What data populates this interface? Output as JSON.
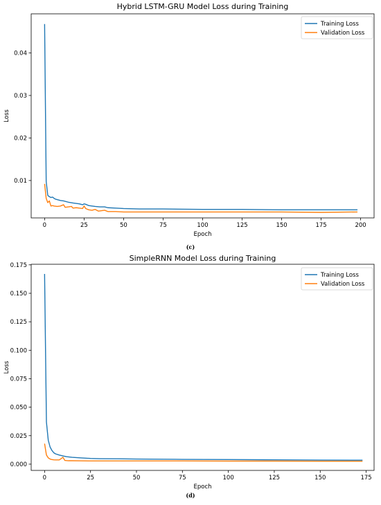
{
  "chart_data": [
    {
      "type": "line",
      "title": "Hybrid LSTM-GRU Model Loss during Training",
      "xlabel": "Epoch",
      "ylabel": "Loss",
      "xlim": [
        -8.5,
        208.5
      ],
      "ylim": [
        0.0012,
        0.0492
      ],
      "xticks": [
        0,
        25,
        50,
        75,
        100,
        125,
        150,
        175,
        200
      ],
      "yticks": [
        0.01,
        0.02,
        0.03,
        0.04
      ],
      "grid": false,
      "legend": "top-right",
      "series": [
        {
          "name": "Training Loss",
          "color": "#1f77b4",
          "points": [
            [
              0,
              0.0468
            ],
            [
              1,
              0.0098
            ],
            [
              2,
              0.0065
            ],
            [
              3,
              0.0062
            ],
            [
              4,
              0.006
            ],
            [
              5,
              0.0061
            ],
            [
              6,
              0.0058
            ],
            [
              7,
              0.0056
            ],
            [
              8,
              0.0055
            ],
            [
              10,
              0.0053
            ],
            [
              12,
              0.0052
            ],
            [
              15,
              0.0049
            ],
            [
              18,
              0.0047
            ],
            [
              20,
              0.0046
            ],
            [
              22,
              0.0045
            ],
            [
              24,
              0.0043
            ],
            [
              25,
              0.0045
            ],
            [
              26,
              0.0044
            ],
            [
              28,
              0.0041
            ],
            [
              30,
              0.004
            ],
            [
              32,
              0.0039
            ],
            [
              35,
              0.0038
            ],
            [
              38,
              0.0038
            ],
            [
              40,
              0.0036
            ],
            [
              45,
              0.0035
            ],
            [
              50,
              0.0034
            ],
            [
              60,
              0.0033
            ],
            [
              75,
              0.0033
            ],
            [
              100,
              0.0032
            ],
            [
              125,
              0.0032
            ],
            [
              150,
              0.0031
            ],
            [
              175,
              0.0031
            ],
            [
              198,
              0.0031
            ]
          ]
        },
        {
          "name": "Validation Loss",
          "color": "#ff7f0e",
          "points": [
            [
              0,
              0.0092
            ],
            [
              1,
              0.0058
            ],
            [
              2,
              0.0048
            ],
            [
              3,
              0.0052
            ],
            [
              4,
              0.004
            ],
            [
              5,
              0.0041
            ],
            [
              6,
              0.004
            ],
            [
              8,
              0.0039
            ],
            [
              10,
              0.004
            ],
            [
              12,
              0.0043
            ],
            [
              13,
              0.0037
            ],
            [
              15,
              0.0038
            ],
            [
              17,
              0.0039
            ],
            [
              18,
              0.0035
            ],
            [
              20,
              0.0036
            ],
            [
              22,
              0.0035
            ],
            [
              24,
              0.0034
            ],
            [
              25,
              0.004
            ],
            [
              26,
              0.0034
            ],
            [
              28,
              0.0031
            ],
            [
              30,
              0.003
            ],
            [
              32,
              0.0032
            ],
            [
              34,
              0.0028
            ],
            [
              36,
              0.0029
            ],
            [
              38,
              0.003
            ],
            [
              40,
              0.0027
            ],
            [
              45,
              0.0027
            ],
            [
              50,
              0.0026
            ],
            [
              75,
              0.0026
            ],
            [
              100,
              0.0026
            ],
            [
              125,
              0.0026
            ],
            [
              150,
              0.0026
            ],
            [
              175,
              0.0025
            ],
            [
              198,
              0.0026
            ]
          ]
        }
      ]
    },
    {
      "type": "line",
      "title": "SimpleRNN Model Loss during Training",
      "xlabel": "Epoch",
      "ylabel": "Loss",
      "xlim": [
        -7.3,
        179.3
      ],
      "ylim": [
        -0.0055,
        0.1755
      ],
      "xticks": [
        0,
        25,
        50,
        75,
        100,
        125,
        150,
        175
      ],
      "yticks": [
        0.0,
        0.025,
        0.05,
        0.075,
        0.1,
        0.125,
        0.15,
        0.175
      ],
      "grid": false,
      "legend": "top-right",
      "series": [
        {
          "name": "Training Loss",
          "color": "#1f77b4",
          "points": [
            [
              0,
              0.167
            ],
            [
              1,
              0.037
            ],
            [
              2,
              0.021
            ],
            [
              3,
              0.015
            ],
            [
              4,
              0.012
            ],
            [
              5,
              0.01
            ],
            [
              6,
              0.009
            ],
            [
              8,
              0.008
            ],
            [
              10,
              0.0072
            ],
            [
              12,
              0.0065
            ],
            [
              15,
              0.006
            ],
            [
              20,
              0.0055
            ],
            [
              25,
              0.005
            ],
            [
              30,
              0.0048
            ],
            [
              40,
              0.0047
            ],
            [
              50,
              0.0045
            ],
            [
              75,
              0.0042
            ],
            [
              100,
              0.004
            ],
            [
              125,
              0.0038
            ],
            [
              150,
              0.0036
            ],
            [
              173,
              0.0035
            ]
          ]
        },
        {
          "name": "Validation Loss",
          "color": "#ff7f0e",
          "points": [
            [
              0,
              0.018
            ],
            [
              1,
              0.008
            ],
            [
              2,
              0.0055
            ],
            [
              3,
              0.0045
            ],
            [
              4,
              0.004
            ],
            [
              5,
              0.0038
            ],
            [
              6,
              0.0037
            ],
            [
              8,
              0.0037
            ],
            [
              10,
              0.006
            ],
            [
              11,
              0.0033
            ],
            [
              13,
              0.003
            ],
            [
              15,
              0.003
            ],
            [
              20,
              0.0029
            ],
            [
              25,
              0.0028
            ],
            [
              50,
              0.0028
            ],
            [
              75,
              0.0028
            ],
            [
              100,
              0.0027
            ],
            [
              125,
              0.0027
            ],
            [
              150,
              0.0026
            ],
            [
              173,
              0.0026
            ]
          ]
        }
      ]
    }
  ],
  "panel_labels": {
    "c": "(c)",
    "d": "(d)"
  },
  "tick_labels": {
    "top_y": [
      "0.01",
      "0.02",
      "0.03",
      "0.04"
    ],
    "bottom_y": [
      "0.000",
      "0.025",
      "0.050",
      "0.075",
      "0.100",
      "0.125",
      "0.150",
      "0.175"
    ]
  }
}
